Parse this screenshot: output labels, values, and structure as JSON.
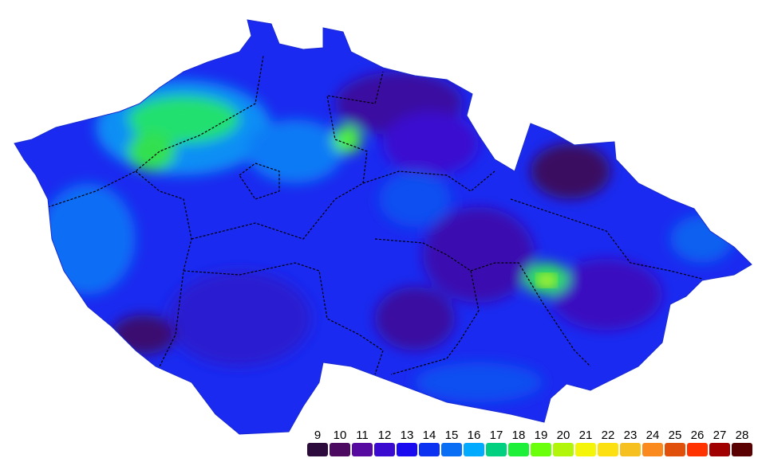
{
  "legend": {
    "items": [
      {
        "label": "9",
        "color": "#2d0a3c"
      },
      {
        "label": "10",
        "color": "#4c0a60"
      },
      {
        "label": "11",
        "color": "#560aa0"
      },
      {
        "label": "12",
        "color": "#3a0ad0"
      },
      {
        "label": "13",
        "color": "#1a0af0"
      },
      {
        "label": "14",
        "color": "#0a32f0"
      },
      {
        "label": "15",
        "color": "#0a6ef5"
      },
      {
        "label": "16",
        "color": "#00aaff"
      },
      {
        "label": "17",
        "color": "#00d080"
      },
      {
        "label": "18",
        "color": "#1ef03a"
      },
      {
        "label": "19",
        "color": "#6aff0a"
      },
      {
        "label": "20",
        "color": "#b0f50a"
      },
      {
        "label": "21",
        "color": "#f5f50a"
      },
      {
        "label": "22",
        "color": "#fce012"
      },
      {
        "label": "23",
        "color": "#f5c020"
      },
      {
        "label": "24",
        "color": "#fa8a1e"
      },
      {
        "label": "25",
        "color": "#e0500a"
      },
      {
        "label": "26",
        "color": "#ff3200"
      },
      {
        "label": "27",
        "color": "#a00000"
      },
      {
        "label": "28",
        "color": "#5a0000"
      }
    ]
  }
}
